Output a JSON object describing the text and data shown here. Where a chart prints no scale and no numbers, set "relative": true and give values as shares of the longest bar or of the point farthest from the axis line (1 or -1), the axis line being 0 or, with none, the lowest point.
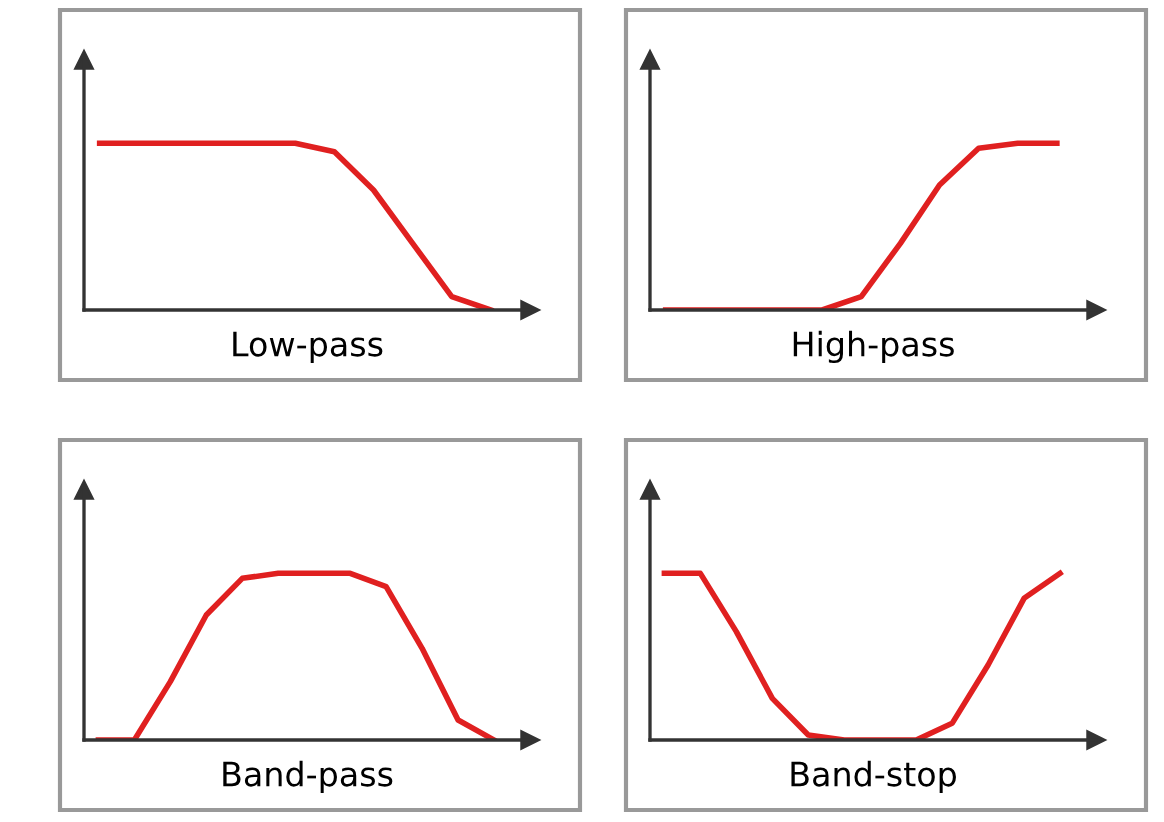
{
  "chart_data": [
    {
      "type": "line",
      "relative": true,
      "xlabel": "Low-pass",
      "categories": [
        null,
        null,
        null,
        null,
        null,
        null,
        null,
        null,
        null,
        null,
        null
      ],
      "series": [
        {
          "color": "#e02020",
          "values": [
            1,
            1,
            1,
            1,
            1,
            1,
            0.95,
            0.72,
            0.4,
            0.08,
            0
          ]
        }
      ],
      "grid": false,
      "legend": false,
      "marker": "none",
      "line_style": "solid"
    },
    {
      "type": "line",
      "relative": true,
      "xlabel": "High-pass",
      "categories": [
        null,
        null,
        null,
        null,
        null,
        null,
        null,
        null,
        null,
        null,
        null
      ],
      "series": [
        {
          "color": "#e02020",
          "values": [
            0,
            0,
            0,
            0,
            0,
            0.08,
            0.4,
            0.75,
            0.97,
            1,
            1
          ]
        }
      ],
      "grid": false,
      "legend": false,
      "marker": "none",
      "line_style": "solid"
    },
    {
      "type": "line",
      "relative": true,
      "xlabel": "Band-pass",
      "categories": [
        null,
        null,
        null,
        null,
        null,
        null,
        null,
        null,
        null,
        null,
        null,
        null
      ],
      "series": [
        {
          "color": "#e02020",
          "values": [
            0,
            0,
            0.35,
            0.75,
            0.97,
            1,
            1,
            1,
            0.92,
            0.55,
            0.12,
            0
          ]
        }
      ],
      "grid": false,
      "legend": false,
      "marker": "none",
      "line_style": "solid"
    },
    {
      "type": "line",
      "relative": true,
      "xlabel": "Band-stop",
      "categories": [
        null,
        null,
        null,
        null,
        null,
        null,
        null,
        null,
        null,
        null,
        null,
        null
      ],
      "series": [
        {
          "color": "#e02020",
          "values": [
            1,
            1,
            0.65,
            0.25,
            0.03,
            0,
            0,
            0,
            0.1,
            0.45,
            0.85,
            1
          ]
        }
      ],
      "grid": false,
      "legend": false,
      "marker": "none",
      "line_style": "solid"
    }
  ]
}
